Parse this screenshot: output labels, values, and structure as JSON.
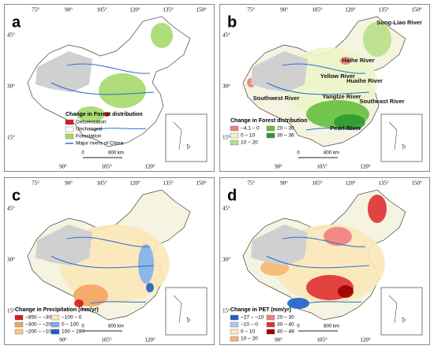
{
  "graticule": {
    "top": [
      "75°",
      "90°",
      "105°",
      "120°",
      "135°",
      "150°"
    ],
    "left": [
      "45°",
      "30°",
      "15°"
    ],
    "bottom": [
      "90°",
      "105°",
      "120°"
    ]
  },
  "scale": {
    "zero": "0",
    "distance": "800 km"
  },
  "panels": [
    {
      "letter": "a",
      "legend": {
        "title": "Change in Forest distribution",
        "items": [
          {
            "label": "Deforestation",
            "color": "#d7191c"
          },
          {
            "label": "Unchanged",
            "color": "#ffffff"
          },
          {
            "label": "Forestation",
            "color": "#a6d96a"
          },
          {
            "label": "Major rivers of China",
            "color": "#2b6cd6"
          }
        ]
      }
    },
    {
      "letter": "b",
      "legend": {
        "title": "Change in Forest distribution",
        "items": [
          {
            "label": "−4.1 – 0",
            "color": "#f08080"
          },
          {
            "label": "20 – 30",
            "color": "#66c040"
          },
          {
            "label": "0 – 10",
            "color": "#eef5c8"
          },
          {
            "label": "30 – 36",
            "color": "#2e9a2e"
          },
          {
            "label": "10 – 20",
            "color": "#b8e08a"
          }
        ]
      },
      "rivers": [
        "Song-Liao River",
        "Haihe River",
        "Yellow River",
        "Huaihe River",
        "Southwest River",
        "Yangtze River",
        "Southeast River",
        "Pearl River"
      ]
    },
    {
      "letter": "c",
      "legend": {
        "title": "Change in Precipitation (mm/yr)",
        "items": [
          {
            "label": "−850 – −300",
            "color": "#d7191c"
          },
          {
            "label": "−100 – 0",
            "color": "#fbe8b8"
          },
          {
            "label": "−300 – −200",
            "color": "#f4a460"
          },
          {
            "label": "0 – 100",
            "color": "#7fb0ea"
          },
          {
            "label": "−200 – −100",
            "color": "#f8c98a"
          },
          {
            "label": "100 – 190",
            "color": "#1f5fc8"
          }
        ]
      }
    },
    {
      "letter": "d",
      "legend": {
        "title": "Change in PET (mm/yr)",
        "items": [
          {
            "label": "−27 – −10",
            "color": "#1f5fc8"
          },
          {
            "label": "20 – 30",
            "color": "#f08080"
          },
          {
            "label": "−10 – 0",
            "color": "#a8c8f0"
          },
          {
            "label": "30 – 40",
            "color": "#e03030"
          },
          {
            "label": "0 – 10",
            "color": "#fbe8b8"
          },
          {
            "label": "40 – 49",
            "color": "#a00000"
          },
          {
            "label": "10 – 20",
            "color": "#f4b870"
          }
        ]
      }
    }
  ]
}
